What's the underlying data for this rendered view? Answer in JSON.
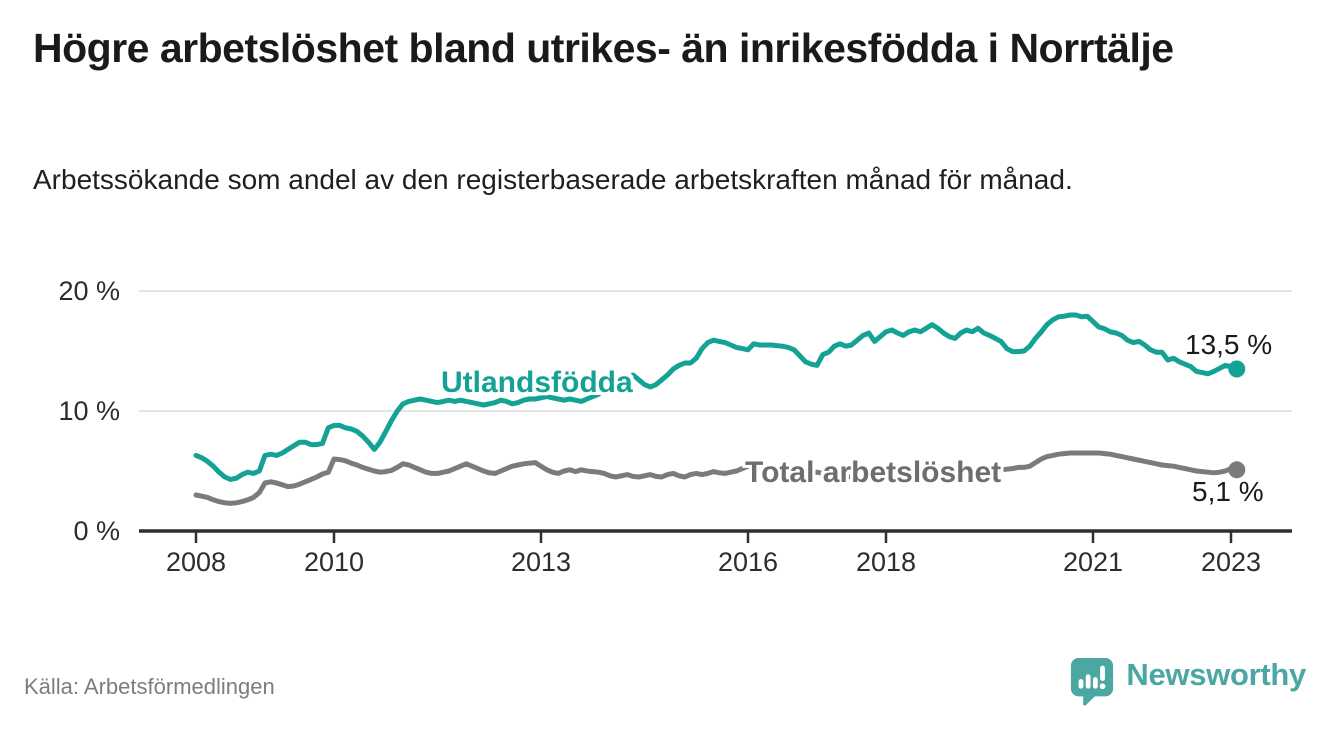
{
  "header": {
    "title": "Högre arbetslöshet bland utrikes- än inrikesfödda i Norrtälje",
    "subtitle": "Arbetssökande som andel av den registerbaserade arbetskraften månad för månad."
  },
  "colors": {
    "accent_teal": "#14A294",
    "line_gray": "#7b7b7b",
    "series_label_gray": "#6e6e6e",
    "grid": "#dcdcdc",
    "axis": "#2f2f2f",
    "text_dark": "#1a1a1a",
    "source_gray": "#7d7d7d",
    "logo_teal": "#4BA7A1"
  },
  "chart_data": {
    "type": "line",
    "unit": "%",
    "x_start_year": 2008,
    "x_start_month": 1,
    "x_end": "2023-02",
    "points_per_year": 12,
    "grid": "horizontal-only",
    "legend_position": "inline-labels",
    "ylim": [
      0,
      21
    ],
    "x_ticks": [
      2008,
      2010,
      2013,
      2016,
      2018,
      2021,
      2023
    ],
    "y_ticks": [
      {
        "value": 0,
        "label": "0 %"
      },
      {
        "value": 10,
        "label": "10 %"
      },
      {
        "value": 20,
        "label": "20 %"
      }
    ],
    "series": [
      {
        "name": "Utlandsfödda",
        "color": "#14A294",
        "end_label": "13,5 %",
        "end_value": 13.5,
        "values": [
          6.3,
          6.1,
          5.8,
          5.4,
          4.9,
          4.5,
          4.3,
          4.4,
          4.7,
          4.9,
          4.8,
          5.0,
          6.3,
          6.4,
          6.3,
          6.5,
          6.8,
          7.1,
          7.4,
          7.4,
          7.2,
          7.2,
          7.3,
          8.6,
          8.8,
          8.8,
          8.6,
          8.5,
          8.3,
          7.9,
          7.4,
          6.8,
          7.4,
          8.3,
          9.2,
          10.0,
          10.6,
          10.8,
          10.9,
          11.0,
          10.9,
          10.8,
          10.7,
          10.8,
          10.9,
          10.8,
          10.9,
          10.8,
          10.7,
          10.6,
          10.5,
          10.6,
          10.7,
          10.9,
          10.8,
          10.6,
          10.7,
          10.9,
          11.0,
          11.0,
          11.1,
          11.2,
          11.1,
          11.0,
          10.9,
          11.0,
          10.9,
          10.8,
          11.0,
          11.2,
          11.4,
          11.7,
          11.9,
          12.1,
          12.4,
          12.7,
          13.0,
          12.6,
          12.2,
          12.0,
          12.2,
          12.6,
          13.0,
          13.5,
          13.8,
          14.0,
          14.0,
          14.4,
          15.2,
          15.7,
          15.9,
          15.8,
          15.7,
          15.5,
          15.3,
          15.2,
          15.1,
          15.6,
          15.5,
          15.5,
          15.5,
          15.45,
          15.4,
          15.3,
          15.1,
          14.6,
          14.1,
          13.9,
          13.8,
          14.7,
          14.9,
          15.4,
          15.6,
          15.4,
          15.5,
          15.9,
          16.3,
          16.5,
          15.8,
          16.2,
          16.6,
          16.75,
          16.5,
          16.3,
          16.6,
          16.75,
          16.6,
          16.9,
          17.2,
          16.9,
          16.5,
          16.2,
          16.05,
          16.5,
          16.75,
          16.6,
          16.9,
          16.5,
          16.3,
          16.05,
          15.8,
          15.2,
          14.95,
          14.95,
          15.0,
          15.4,
          16.05,
          16.6,
          17.2,
          17.6,
          17.85,
          17.9,
          18.0,
          18.0,
          17.85,
          17.9,
          17.45,
          17.0,
          16.85,
          16.6,
          16.5,
          16.3,
          15.9,
          15.7,
          15.8,
          15.5,
          15.1,
          14.9,
          14.9,
          14.25,
          14.4,
          14.1,
          13.9,
          13.7,
          13.3,
          13.2,
          13.1,
          13.3,
          13.55,
          13.8,
          13.7,
          13.5
        ]
      },
      {
        "name": "Total arbetslöshet",
        "color": "#7b7b7b",
        "end_label": "5,1 %",
        "end_value": 5.1,
        "values": [
          3.0,
          2.9,
          2.8,
          2.6,
          2.45,
          2.35,
          2.3,
          2.35,
          2.45,
          2.6,
          2.8,
          3.2,
          4.0,
          4.1,
          4.0,
          3.85,
          3.7,
          3.75,
          3.9,
          4.1,
          4.3,
          4.5,
          4.75,
          4.9,
          6.0,
          5.95,
          5.85,
          5.65,
          5.5,
          5.3,
          5.15,
          5.0,
          4.9,
          4.95,
          5.05,
          5.3,
          5.6,
          5.5,
          5.3,
          5.1,
          4.9,
          4.8,
          4.8,
          4.9,
          5.0,
          5.2,
          5.4,
          5.6,
          5.4,
          5.2,
          5.0,
          4.85,
          4.8,
          5.0,
          5.2,
          5.4,
          5.5,
          5.6,
          5.65,
          5.7,
          5.4,
          5.1,
          4.9,
          4.8,
          5.0,
          5.1,
          4.95,
          5.1,
          5.0,
          4.95,
          4.9,
          4.8,
          4.6,
          4.5,
          4.6,
          4.7,
          4.55,
          4.5,
          4.6,
          4.7,
          4.55,
          4.5,
          4.7,
          4.8,
          4.6,
          4.5,
          4.7,
          4.8,
          4.7,
          4.8,
          4.95,
          4.85,
          4.8,
          4.9,
          5.0,
          5.2,
          5.4,
          5.3,
          5.1,
          5.0,
          4.9,
          4.8,
          4.7,
          4.65,
          4.6,
          4.65,
          4.7,
          4.8,
          4.9,
          4.8,
          4.7,
          4.6,
          4.55,
          4.5,
          4.55,
          4.6,
          4.7,
          4.75,
          4.8,
          4.9,
          5.0,
          4.95,
          4.85,
          4.75,
          4.7,
          4.65,
          4.6,
          4.65,
          4.7,
          4.75,
          4.8,
          4.9,
          5.0,
          4.95,
          4.9,
          4.85,
          4.8,
          4.85,
          4.9,
          5.0,
          5.1,
          5.15,
          5.2,
          5.3,
          5.3,
          5.4,
          5.7,
          6.0,
          6.2,
          6.3,
          6.4,
          6.45,
          6.5,
          6.5,
          6.5,
          6.5,
          6.5,
          6.5,
          6.45,
          6.4,
          6.3,
          6.2,
          6.1,
          6.0,
          5.9,
          5.8,
          5.7,
          5.6,
          5.5,
          5.45,
          5.4,
          5.3,
          5.2,
          5.1,
          5.0,
          4.95,
          4.9,
          4.85,
          4.9,
          5.0,
          5.2,
          5.1
        ]
      }
    ]
  },
  "footer": {
    "source": "Källa: Arbetsförmedlingen",
    "logo_text": "Newsworthy"
  }
}
